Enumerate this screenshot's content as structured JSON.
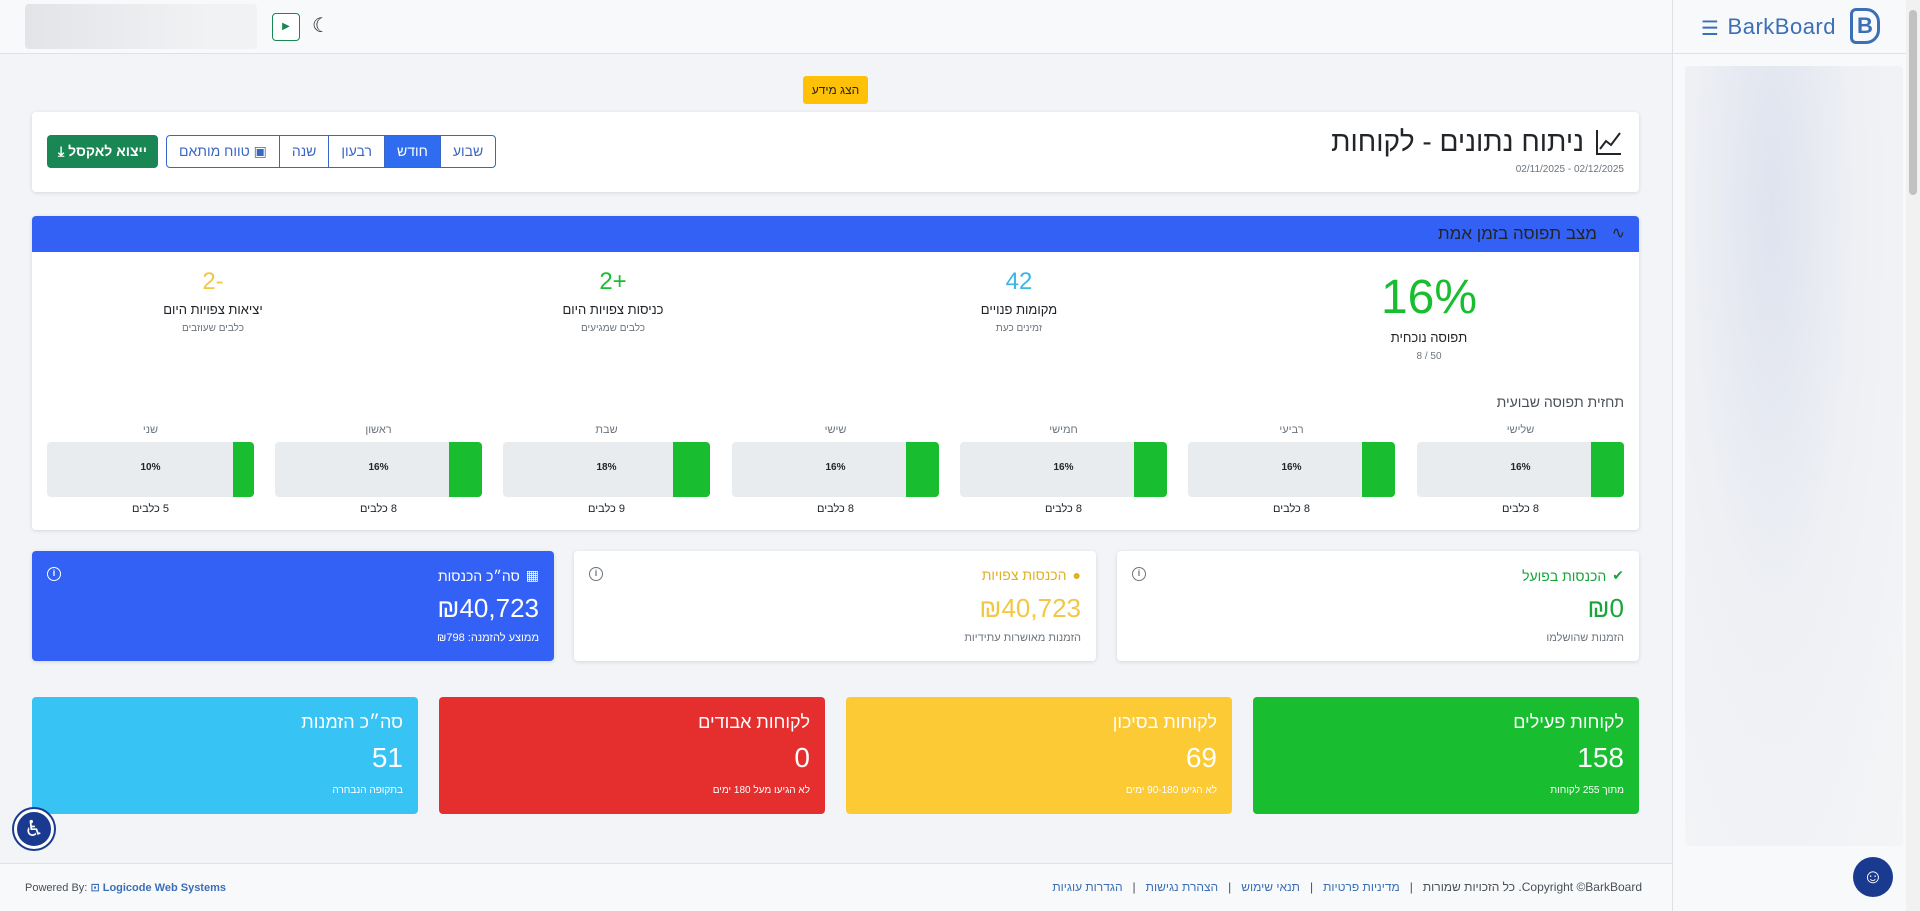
{
  "brand": {
    "name": "BarkBoard",
    "logo_letter": "B"
  },
  "show_data_label": "הצג מידע",
  "header": {
    "title": "ניתוח נתונים - לקוחות",
    "date_range": "02/11/2025 - 02/12/2025",
    "periods": [
      "שבוע",
      "חודש",
      "רבעון",
      "שנה",
      "טווח מותאם"
    ],
    "active_period": "חודש",
    "export_label": "ייצוא לאקסל"
  },
  "occupancy": {
    "title": "מצב תפוסה בזמן אמת",
    "current": {
      "value": "16%",
      "label": "תפוסה נוכחית",
      "sub": "50 / 8",
      "color": "#18be2f"
    },
    "free": {
      "value": "42",
      "label": "מקומות פנויים",
      "sub": "זמינים כעת",
      "color": "#3cb5e5"
    },
    "arrivals": {
      "value": "+2",
      "label": "כניסות צפויות היום",
      "sub": "כלבים שמגיעים",
      "color": "#18be2f"
    },
    "departures": {
      "value": "-2",
      "label": "יציאות צפויות היום",
      "sub": "כלבים שעוזבים",
      "color": "#f2c744"
    },
    "forecast_title": "תחזית תפוסה שבועית",
    "days": [
      {
        "name": "שלישי",
        "pct": 16,
        "label": "16%",
        "count": "8 כלבים"
      },
      {
        "name": "רביעי",
        "pct": 16,
        "label": "16%",
        "count": "8 כלבים"
      },
      {
        "name": "חמישי",
        "pct": 16,
        "label": "16%",
        "count": "8 כלבים"
      },
      {
        "name": "שישי",
        "pct": 16,
        "label": "16%",
        "count": "8 כלבים"
      },
      {
        "name": "שבת",
        "pct": 18,
        "label": "18%",
        "count": "9 כלבים"
      },
      {
        "name": "ראשון",
        "pct": 16,
        "label": "16%",
        "count": "8 כלבים"
      },
      {
        "name": "שני",
        "pct": 10,
        "label": "10%",
        "count": "5 כלבים"
      }
    ]
  },
  "revenue": {
    "actual": {
      "title": "הכנסות בפועל",
      "value": "₪0",
      "sub": "הזמנות שהושלמו",
      "color": "#18a53a"
    },
    "expected": {
      "title": "הכנסות צפויות",
      "value": "₪40,723",
      "sub": "הזמנות מאושרות עתידיות",
      "color": "#f2c744"
    },
    "total": {
      "title": "סה״כ הכנסות",
      "value": "₪40,723",
      "sub": "ממוצע להזמנה: ₪798",
      "color": "#3361f5"
    }
  },
  "customers": {
    "active": {
      "title": "לקוחות פעילים",
      "value": "158",
      "sub": "מתוך 255 לקוחות",
      "color": "#18be2f"
    },
    "risk": {
      "title": "לקוחות בסיכון",
      "value": "69",
      "sub": "לא הגיעו 90-180 ימים",
      "color": "#fcca35"
    },
    "lost": {
      "title": "לקוחות אבודים",
      "value": "0",
      "sub": "לא הגיעו מעל 180 ימים",
      "color": "#e52e2e"
    },
    "orders": {
      "title": "סה״כ הזמנות",
      "value": "51",
      "sub": "בתקופה הנבחרה",
      "color": "#38c3f5"
    }
  },
  "footer": {
    "copyright": "Copyright ©BarkBoard. כל הזכויות שמורות",
    "links": [
      "מדיניות פרטיות",
      "תנאי שימוש",
      "הצהרת נגישות",
      "הגדרות עוגיות"
    ],
    "powered_by": "Powered By:",
    "powered_company": "Logicode Web Systems"
  }
}
